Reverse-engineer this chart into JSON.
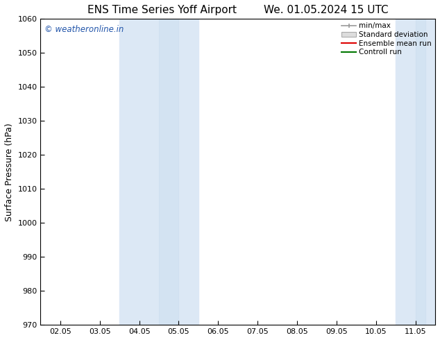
{
  "title_left": "ENS Time Series Yoff Airport",
  "title_right": "We. 01.05.2024 15 UTC",
  "ylabel": "Surface Pressure (hPa)",
  "ylim": [
    970,
    1060
  ],
  "yticks": [
    970,
    980,
    990,
    1000,
    1010,
    1020,
    1030,
    1040,
    1050,
    1060
  ],
  "xtick_labels": [
    "02.05",
    "03.05",
    "04.05",
    "05.05",
    "06.05",
    "07.05",
    "08.05",
    "09.05",
    "10.05",
    "11.05"
  ],
  "xtick_positions": [
    0,
    1,
    2,
    3,
    4,
    5,
    6,
    7,
    8,
    9
  ],
  "xlim": [
    -0.5,
    9.5
  ],
  "shaded_bands": [
    {
      "x_start": 1.5,
      "x_end": 2.5,
      "color": "#ddeeff"
    },
    {
      "x_start": 2.5,
      "x_end": 3.5,
      "color": "#ddeeff"
    },
    {
      "x_start": 8.5,
      "x_end": 9.5,
      "color": "#ddeeff"
    },
    {
      "x_start": 9.0,
      "x_end": 9.5,
      "color": "#ddeeff"
    }
  ],
  "watermark_text": "© weatheronline.in",
  "watermark_color": "#2255aa",
  "legend_labels": [
    "min/max",
    "Standard deviation",
    "Ensemble mean run",
    "Controll run"
  ],
  "legend_line_colors": [
    "#999999",
    "#bbbbbb",
    "#dd0000",
    "#007700"
  ],
  "background_color": "#ffffff",
  "title_fontsize": 11,
  "tick_fontsize": 8,
  "ylabel_fontsize": 9
}
